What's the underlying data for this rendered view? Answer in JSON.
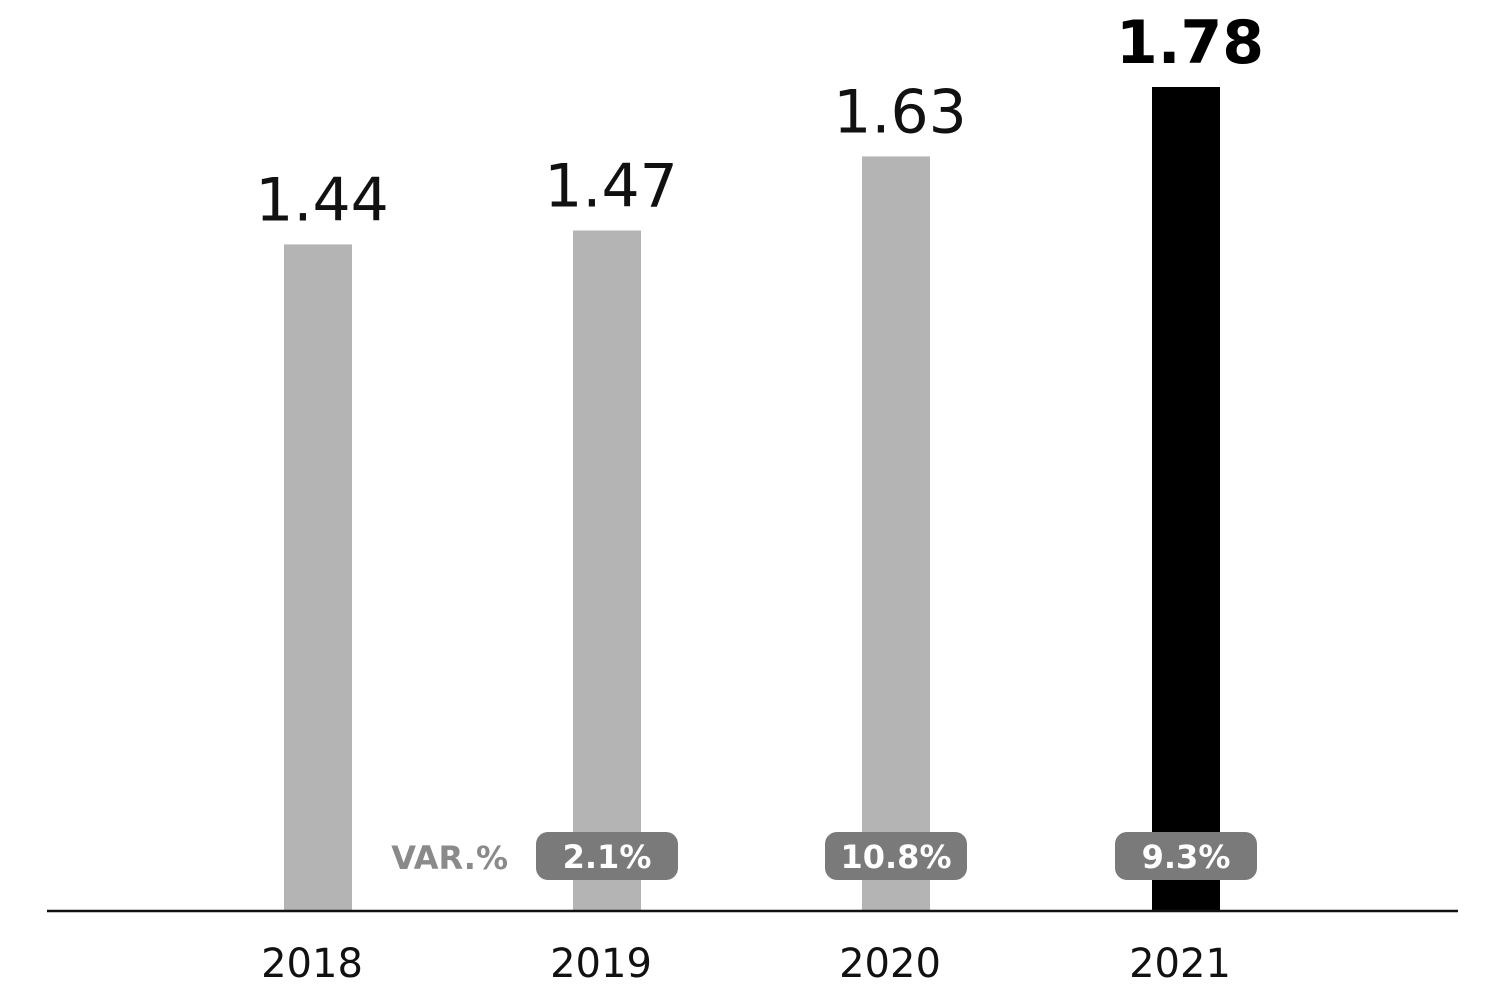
{
  "chart_data": {
    "type": "bar",
    "categories": [
      "2018",
      "2019",
      "2020",
      "2021"
    ],
    "values": [
      1.44,
      1.47,
      1.63,
      1.78
    ],
    "value_labels": [
      "1.44",
      "1.47",
      "1.63",
      "1.78"
    ],
    "highlight_index": 3,
    "variation_label": "VAR.%",
    "variations": [
      null,
      "2.1%",
      "10.8%",
      "9.3%"
    ],
    "title": "",
    "xlabel": "",
    "ylabel": "",
    "ylim": [
      0,
      1.78
    ],
    "grid": false,
    "legend": "none"
  },
  "colors": {
    "bar": "#b4b4b4",
    "bar_highlight": "#000000",
    "badge": "#7a7a7a",
    "axis": "#111111"
  }
}
